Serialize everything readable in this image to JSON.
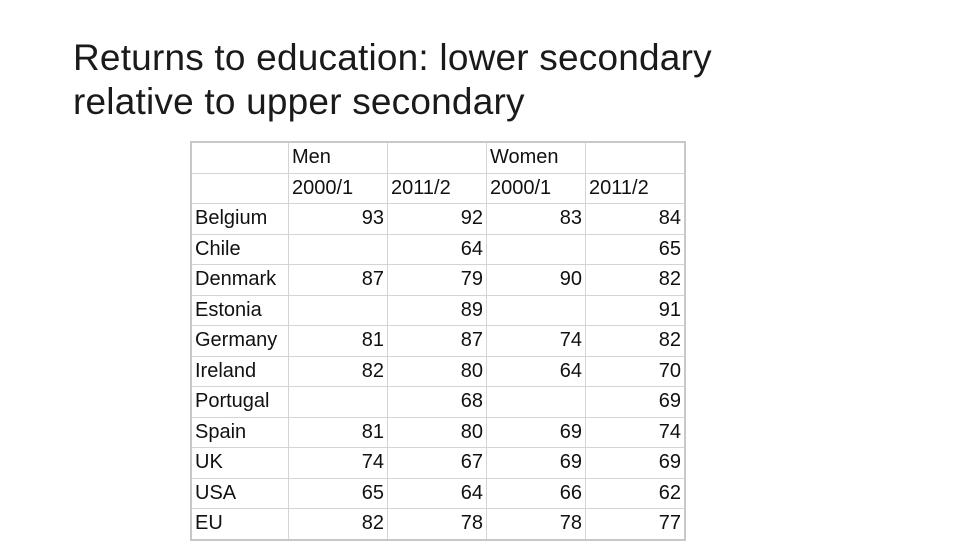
{
  "title": {
    "line1": "Returns to education: lower secondary",
    "line2": "relative to upper secondary"
  },
  "table": {
    "group_headers": [
      "",
      "Men",
      "",
      "Women",
      ""
    ],
    "year_headers": [
      "",
      "2000/1",
      "2011/2",
      "2000/1",
      "2011/2"
    ],
    "rows": [
      {
        "country": "Belgium",
        "cells": [
          "93",
          "92",
          "83",
          "84"
        ]
      },
      {
        "country": "Chile",
        "cells": [
          "",
          "64",
          "",
          "65"
        ]
      },
      {
        "country": "Denmark",
        "cells": [
          "87",
          "79",
          "90",
          "82"
        ]
      },
      {
        "country": "Estonia",
        "cells": [
          "",
          "89",
          "",
          "91"
        ]
      },
      {
        "country": "Germany",
        "cells": [
          "81",
          "87",
          "74",
          "82"
        ]
      },
      {
        "country": "Ireland",
        "cells": [
          "82",
          "80",
          "64",
          "70"
        ]
      },
      {
        "country": "Portugal",
        "cells": [
          "",
          "68",
          "",
          "69"
        ]
      },
      {
        "country": "Spain",
        "cells": [
          "81",
          "80",
          "69",
          "74"
        ]
      },
      {
        "country": "UK",
        "cells": [
          "74",
          "67",
          "69",
          "69"
        ]
      },
      {
        "country": "USA",
        "cells": [
          "65",
          "64",
          "66",
          "62"
        ]
      },
      {
        "country": "EU",
        "cells": [
          "82",
          "78",
          "78",
          "77"
        ]
      }
    ]
  }
}
